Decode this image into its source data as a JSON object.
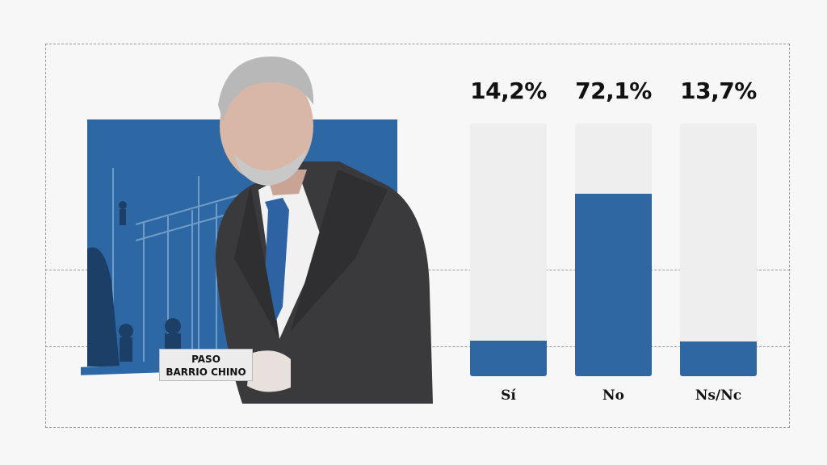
{
  "chart_data": {
    "type": "bar",
    "categories": [
      "Sí",
      "No",
      "Ns/Nc"
    ],
    "values": [
      14.2,
      72.1,
      13.7
    ],
    "value_labels": [
      "14,2%",
      "72,1%",
      "13,7%"
    ],
    "ylim": [
      0,
      100
    ],
    "bar_color": "#2e67a2",
    "track_color": "#eeeeee",
    "grid": false
  },
  "photo": {
    "sign_line1": "PASO",
    "sign_line2": "BARRIO CHINO",
    "accent": "#2d68a4"
  }
}
